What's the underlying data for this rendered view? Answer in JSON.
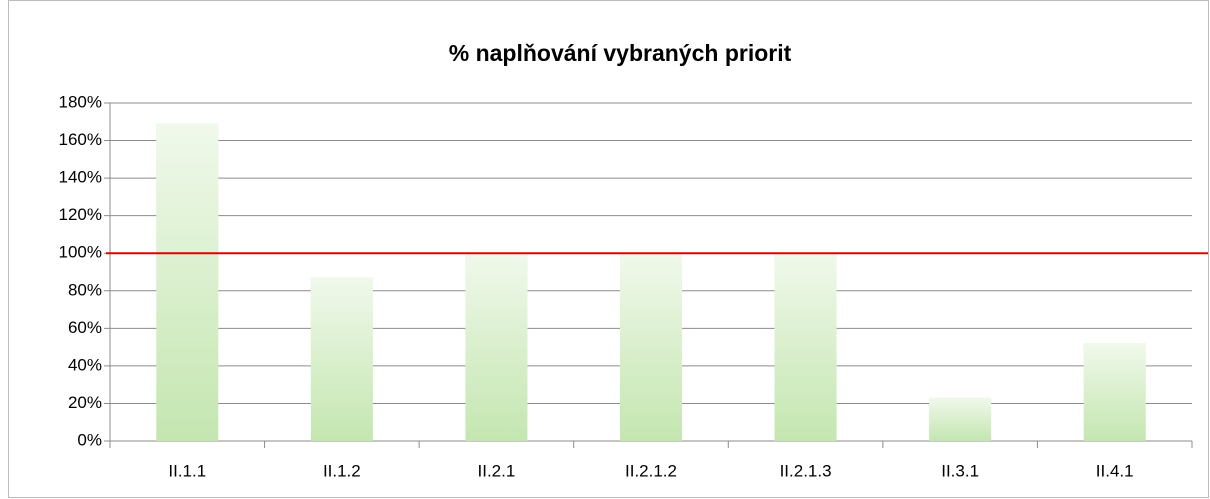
{
  "chart_data": {
    "type": "bar",
    "title": "% naplňování vybraných priorit",
    "categories": [
      "II.1.1",
      "II.1.2",
      "II.2.1",
      "II.2.1.2",
      "II.2.1.3",
      "II.3.1",
      "II.4.1"
    ],
    "values": [
      169,
      87,
      100,
      100,
      100,
      23,
      52
    ],
    "color": "#c4e6b0",
    "ylim": [
      0,
      180
    ],
    "yticks": [
      {
        "value": 0,
        "label": "0%"
      },
      {
        "value": 20,
        "label": "20%"
      },
      {
        "value": 40,
        "label": "40%"
      },
      {
        "value": 60,
        "label": "60%"
      },
      {
        "value": 80,
        "label": "80%"
      },
      {
        "value": 100,
        "label": "100%"
      },
      {
        "value": 120,
        "label": "120%"
      },
      {
        "value": 140,
        "label": "140%"
      },
      {
        "value": 160,
        "label": "160%"
      },
      {
        "value": 180,
        "label": "180%"
      }
    ],
    "grid": true,
    "reference_line": {
      "value": 100,
      "color": "#e00000"
    }
  }
}
